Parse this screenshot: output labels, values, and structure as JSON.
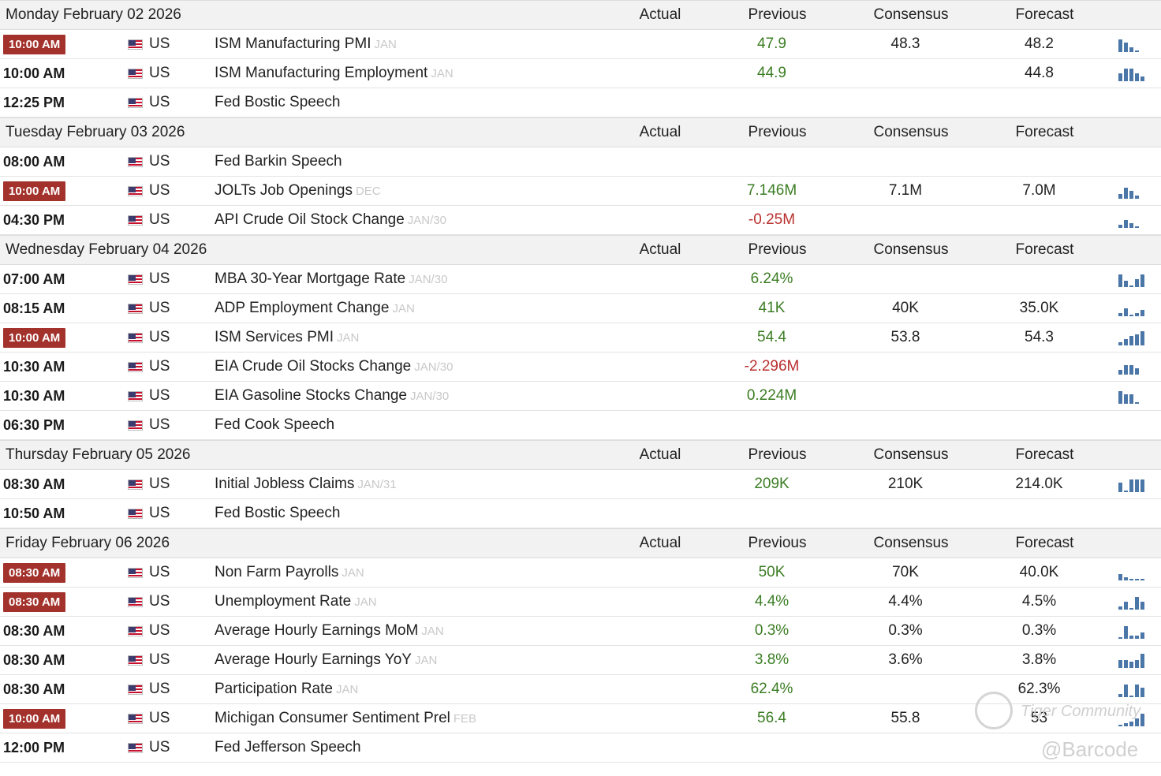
{
  "columns": {
    "actual": "Actual",
    "previous": "Previous",
    "consensus": "Consensus",
    "forecast": "Forecast"
  },
  "days": [
    {
      "date": "Monday February 02 2026",
      "events": [
        {
          "time": "10:00 AM",
          "highlight": true,
          "country": "US",
          "name": "ISM Manufacturing PMI",
          "ref": "JAN",
          "actual": "",
          "previous": "47.9",
          "previous_color": "green",
          "consensus": "48.3",
          "forecast": "48.2",
          "spark": [
            16,
            12,
            6,
            2
          ]
        },
        {
          "time": "10:00 AM",
          "highlight": false,
          "country": "US",
          "name": "ISM Manufacturing Employment",
          "ref": "JAN",
          "actual": "",
          "previous": "44.9",
          "previous_color": "green",
          "consensus": "",
          "forecast": "44.8",
          "spark": [
            10,
            16,
            16,
            10,
            6
          ]
        },
        {
          "time": "12:25 PM",
          "highlight": false,
          "country": "US",
          "name": "Fed Bostic Speech",
          "ref": "",
          "actual": "",
          "previous": "",
          "previous_color": "",
          "consensus": "",
          "forecast": "",
          "spark": []
        }
      ]
    },
    {
      "date": "Tuesday February 03 2026",
      "events": [
        {
          "time": "08:00 AM",
          "highlight": false,
          "country": "US",
          "name": "Fed Barkin Speech",
          "ref": "",
          "actual": "",
          "previous": "",
          "previous_color": "",
          "consensus": "",
          "forecast": "",
          "spark": []
        },
        {
          "time": "10:00 AM",
          "highlight": true,
          "country": "US",
          "name": "JOLTs Job Openings",
          "ref": "DEC",
          "actual": "",
          "previous": "7.146M",
          "previous_color": "green",
          "consensus": "7.1M",
          "forecast": "7.0M",
          "spark": [
            6,
            14,
            10,
            4
          ]
        },
        {
          "time": "04:30 PM",
          "highlight": false,
          "country": "US",
          "name": "API Crude Oil Stock Change",
          "ref": "JAN/30",
          "actual": "",
          "previous": "-0.25M",
          "previous_color": "red",
          "consensus": "",
          "forecast": "",
          "spark": [
            4,
            10,
            6,
            2
          ]
        }
      ]
    },
    {
      "date": "Wednesday February 04 2026",
      "events": [
        {
          "time": "07:00 AM",
          "highlight": false,
          "country": "US",
          "name": "MBA 30-Year Mortgage Rate",
          "ref": "JAN/30",
          "actual": "",
          "previous": "6.24%",
          "previous_color": "green",
          "consensus": "",
          "forecast": "",
          "spark": [
            16,
            8,
            2,
            10,
            16
          ]
        },
        {
          "time": "08:15 AM",
          "highlight": false,
          "country": "US",
          "name": "ADP Employment Change",
          "ref": "JAN",
          "actual": "",
          "previous": "41K",
          "previous_color": "green",
          "consensus": "40K",
          "forecast": "35.0K",
          "spark": [
            4,
            10,
            2,
            4,
            8
          ]
        },
        {
          "time": "10:00 AM",
          "highlight": true,
          "country": "US",
          "name": "ISM Services PMI",
          "ref": "JAN",
          "actual": "",
          "previous": "54.4",
          "previous_color": "green",
          "consensus": "53.8",
          "forecast": "54.3",
          "spark": [
            4,
            8,
            12,
            14,
            18
          ]
        },
        {
          "time": "10:30 AM",
          "highlight": false,
          "country": "US",
          "name": "EIA Crude Oil Stocks Change",
          "ref": "JAN/30",
          "actual": "",
          "previous": "-2.296M",
          "previous_color": "red",
          "consensus": "",
          "forecast": "",
          "spark": [
            6,
            12,
            12,
            8
          ]
        },
        {
          "time": "10:30 AM",
          "highlight": false,
          "country": "US",
          "name": "EIA Gasoline Stocks Change",
          "ref": "JAN/30",
          "actual": "",
          "previous": "0.224M",
          "previous_color": "green",
          "consensus": "",
          "forecast": "",
          "spark": [
            16,
            12,
            12,
            2
          ]
        },
        {
          "time": "06:30 PM",
          "highlight": false,
          "country": "US",
          "name": "Fed Cook Speech",
          "ref": "",
          "actual": "",
          "previous": "",
          "previous_color": "",
          "consensus": "",
          "forecast": "",
          "spark": []
        }
      ]
    },
    {
      "date": "Thursday February 05 2026",
      "events": [
        {
          "time": "08:30 AM",
          "highlight": false,
          "country": "US",
          "name": "Initial Jobless Claims",
          "ref": "JAN/31",
          "actual": "",
          "previous": "209K",
          "previous_color": "green",
          "consensus": "210K",
          "forecast": "214.0K",
          "spark": [
            12,
            2,
            16,
            16,
            16
          ]
        },
        {
          "time": "10:50 AM",
          "highlight": false,
          "country": "US",
          "name": "Fed Bostic Speech",
          "ref": "",
          "actual": "",
          "previous": "",
          "previous_color": "",
          "consensus": "",
          "forecast": "",
          "spark": []
        }
      ]
    }
  ],
  "friday": {
    "date": "Friday February 06 2026",
    "events": [
      {
        "time": "08:30 AM",
        "highlight": true,
        "country": "US",
        "name": "Non Farm Payrolls",
        "ref": "JAN",
        "actual": "",
        "previous": "50K",
        "previous_color": "green",
        "consensus": "70K",
        "forecast": "40.0K",
        "spark": [
          8,
          4,
          2,
          2,
          2
        ]
      },
      {
        "time": "08:30 AM",
        "highlight": true,
        "country": "US",
        "name": "Unemployment Rate",
        "ref": "JAN",
        "actual": "",
        "previous": "4.4%",
        "previous_color": "green",
        "consensus": "4.4%",
        "forecast": "4.5%",
        "spark": [
          4,
          10,
          2,
          16,
          10
        ]
      },
      {
        "time": "08:30 AM",
        "highlight": false,
        "country": "US",
        "name": "Average Hourly Earnings MoM",
        "ref": "JAN",
        "actual": "",
        "previous": "0.3%",
        "previous_color": "green",
        "consensus": "0.3%",
        "forecast": "0.3%",
        "spark": [
          2,
          16,
          4,
          4,
          8
        ]
      },
      {
        "time": "08:30 AM",
        "highlight": false,
        "country": "US",
        "name": "Average Hourly Earnings YoY",
        "ref": "JAN",
        "actual": "",
        "previous": "3.8%",
        "previous_color": "green",
        "consensus": "3.6%",
        "forecast": "3.8%",
        "spark": [
          10,
          10,
          8,
          10,
          18
        ]
      },
      {
        "time": "08:30 AM",
        "highlight": false,
        "country": "US",
        "name": "Participation Rate",
        "ref": "JAN",
        "actual": "",
        "previous": "62.4%",
        "previous_color": "green",
        "consensus": "",
        "forecast": "62.3%",
        "spark": [
          4,
          16,
          2,
          16,
          12
        ]
      },
      {
        "time": "10:00 AM",
        "highlight": true,
        "country": "US",
        "name": "Michigan Consumer Sentiment Prel",
        "ref": "FEB",
        "actual": "",
        "previous": "56.4",
        "previous_color": "green",
        "consensus": "55.8",
        "forecast": "53",
        "spark": [
          2,
          4,
          6,
          10,
          16
        ]
      },
      {
        "time": "12:00 PM",
        "highlight": false,
        "country": "US",
        "name": "Fed Jefferson Speech",
        "ref": "",
        "actual": "",
        "previous": "",
        "previous_color": "",
        "consensus": "",
        "forecast": "",
        "spark": []
      }
    ]
  },
  "watermark": {
    "brand": "Tiger Community",
    "handle": "@Barcode"
  }
}
